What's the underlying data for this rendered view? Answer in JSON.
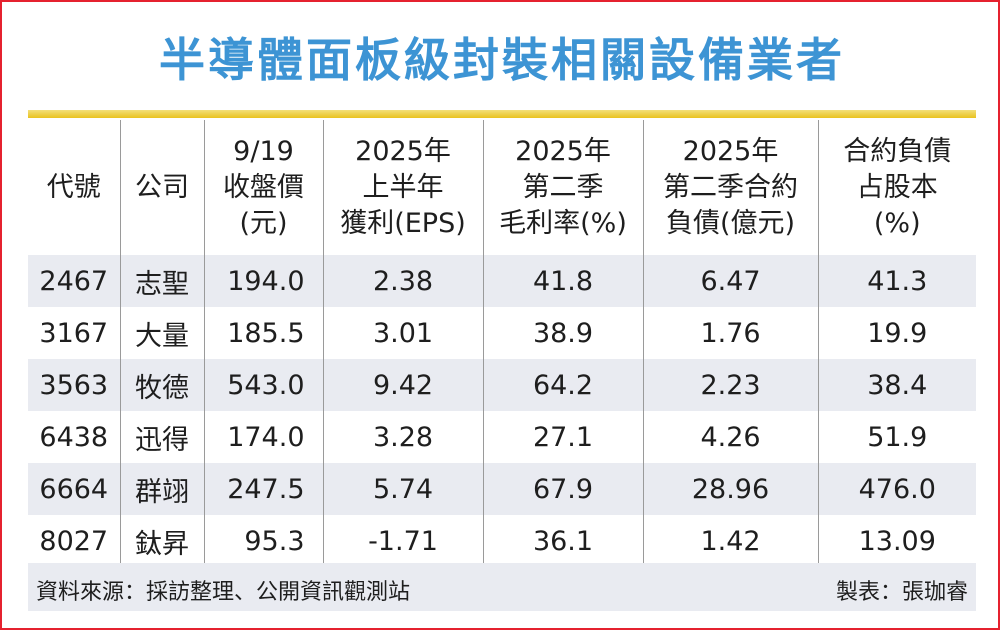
{
  "title": "半導體面板級封裝相關設備業者",
  "table": {
    "headers": [
      {
        "lines": [
          "代號"
        ]
      },
      {
        "lines": [
          "公司"
        ]
      },
      {
        "lines": [
          "9/19",
          "收盤價",
          "(元)"
        ]
      },
      {
        "lines": [
          "2025年",
          "上半年",
          "獲利(EPS)"
        ]
      },
      {
        "lines": [
          "2025年",
          "第二季",
          "毛利率(%)"
        ]
      },
      {
        "lines": [
          "2025年",
          "第二季合約",
          "負債(億元)"
        ]
      },
      {
        "lines": [
          "合約負債",
          "占股本",
          "(%)"
        ]
      }
    ],
    "rows": [
      [
        "2467",
        "志聖",
        "194.0",
        "2.38",
        "41.8",
        "6.47",
        "41.3"
      ],
      [
        "3167",
        "大量",
        "185.5",
        "3.01",
        "38.9",
        "1.76",
        "19.9"
      ],
      [
        "3563",
        "牧德",
        "543.0",
        "9.42",
        "64.2",
        "2.23",
        "38.4"
      ],
      [
        "6438",
        "迅得",
        "174.0",
        "3.28",
        "27.1",
        "4.26",
        "51.9"
      ],
      [
        "6664",
        "群翊",
        "247.5",
        "5.74",
        "67.9",
        "28.96",
        "476.0"
      ],
      [
        "8027",
        "鈦昇",
        "95.3",
        "-1.71",
        "36.1",
        "1.42",
        "13.09"
      ]
    ]
  },
  "footer": {
    "source": "資料來源：採訪整理、公開資訊觀測站",
    "credit": "製表：張珈睿"
  },
  "colors": {
    "title": "#3d94d4",
    "border": "#e5212f",
    "rule": "#e9c21e",
    "stripe": "#e9ebf1"
  }
}
